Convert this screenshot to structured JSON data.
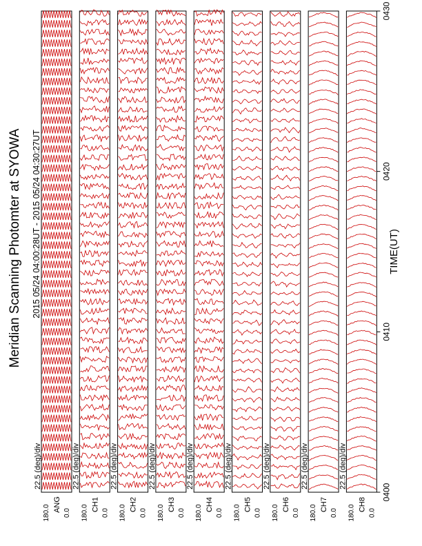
{
  "chart_data": {
    "type": "line",
    "orientation": "rotated-90",
    "title": "Meridian Scanning Photomter at SYOWA",
    "time_range_label": "2015 05/24 04:00:28UT - 2015 05/24 04:30:27UT",
    "xlabel": "TIME(UT)",
    "x_ticks": [
      "0400",
      "0410",
      "0420",
      "0430"
    ],
    "x_range": [
      "0400",
      "0430"
    ],
    "scale_label": "22.5 (deg)/div",
    "y_tick_top": "180.0",
    "y_tick_bottom": "0.0",
    "line_color": "#cc0000",
    "grid": false,
    "panels": [
      {
        "label": "ANG",
        "style": "angle"
      },
      {
        "label": "CH1",
        "style": "noisy"
      },
      {
        "label": "CH2",
        "style": "noisy"
      },
      {
        "label": "CH3",
        "style": "noisy"
      },
      {
        "label": "CH4",
        "style": "noisy"
      },
      {
        "label": "CH5",
        "style": "regular"
      },
      {
        "label": "CH6",
        "style": "regular"
      },
      {
        "label": "CH7",
        "style": "smooth"
      },
      {
        "label": "CH8",
        "style": "smooth"
      }
    ],
    "scans_per_panel": 50
  }
}
